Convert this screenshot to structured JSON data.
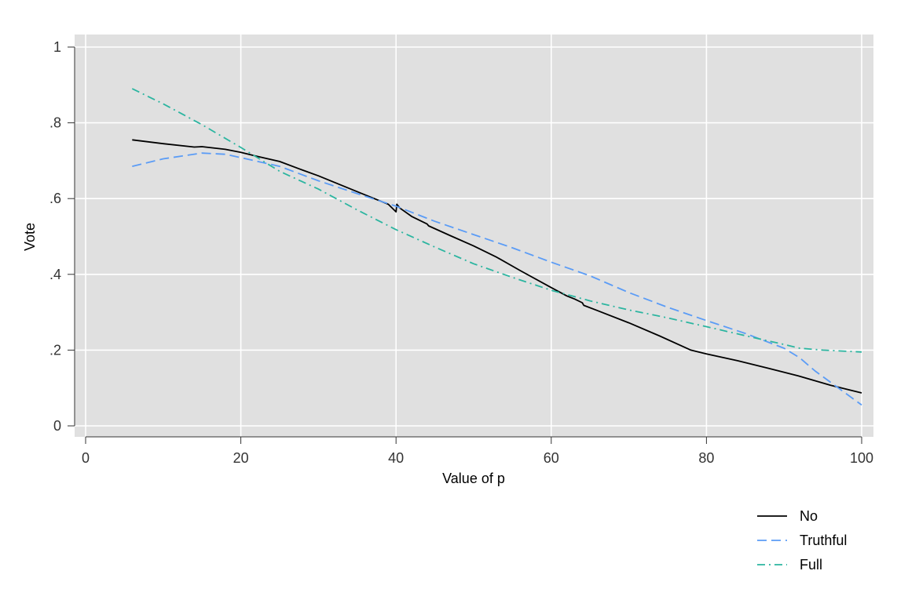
{
  "chart_data": {
    "type": "line",
    "xlabel": "Value of p",
    "ylabel": "Vote",
    "xlim": [
      0,
      100
    ],
    "ylim": [
      0,
      1
    ],
    "x_ticks": [
      0,
      20,
      40,
      60,
      80,
      100
    ],
    "x_tick_labels": [
      "0",
      "20",
      "40",
      "60",
      "80",
      "100"
    ],
    "y_ticks": [
      0,
      0.2,
      0.4,
      0.6,
      0.8,
      1
    ],
    "y_tick_labels": [
      "0",
      ".2",
      ".4",
      ".6",
      ".8",
      "1"
    ],
    "grid": true,
    "legend_position": "bottom-right",
    "background_color": "#e0e0e0",
    "series": [
      {
        "name": "No",
        "color": "#000000",
        "dash": "solid",
        "x": [
          6,
          10,
          14,
          15,
          18,
          20,
          22,
          25,
          28,
          30,
          33,
          36,
          39,
          40,
          40.1,
          40.5,
          42,
          44,
          44.2,
          47,
          50,
          53,
          56,
          60,
          62,
          63,
          64,
          64.2,
          66,
          70,
          74,
          78,
          80,
          84,
          88,
          92,
          96,
          100
        ],
        "values": [
          0.755,
          0.745,
          0.736,
          0.737,
          0.73,
          0.722,
          0.712,
          0.698,
          0.675,
          0.66,
          0.635,
          0.61,
          0.585,
          0.565,
          0.585,
          0.575,
          0.553,
          0.533,
          0.528,
          0.502,
          0.475,
          0.445,
          0.41,
          0.365,
          0.343,
          0.335,
          0.325,
          0.318,
          0.304,
          0.272,
          0.237,
          0.2,
          0.19,
          0.172,
          0.152,
          0.131,
          0.107,
          0.087
        ]
      },
      {
        "name": "Truthful",
        "color": "#5b9cf6",
        "dash": "dashed",
        "x": [
          6,
          10,
          15,
          18,
          20,
          25,
          30,
          35,
          40,
          45,
          50,
          55,
          60,
          65,
          70,
          75,
          80,
          85,
          90,
          92,
          94,
          96,
          98,
          100
        ],
        "values": [
          0.685,
          0.705,
          0.72,
          0.717,
          0.708,
          0.685,
          0.647,
          0.613,
          0.58,
          0.54,
          0.505,
          0.47,
          0.432,
          0.396,
          0.352,
          0.313,
          0.278,
          0.244,
          0.205,
          0.18,
          0.145,
          0.115,
          0.085,
          0.055
        ]
      },
      {
        "name": "Full",
        "color": "#2cb5a0",
        "dash": "dashdot",
        "x": [
          6,
          10,
          15,
          20,
          25,
          30,
          35,
          40,
          45,
          50,
          55,
          60,
          65,
          70,
          75,
          80,
          85,
          90,
          92,
          95,
          100
        ],
        "values": [
          0.89,
          0.85,
          0.795,
          0.735,
          0.672,
          0.625,
          0.57,
          0.518,
          0.472,
          0.428,
          0.392,
          0.358,
          0.33,
          0.306,
          0.285,
          0.262,
          0.238,
          0.215,
          0.205,
          0.2,
          0.195
        ]
      }
    ]
  }
}
